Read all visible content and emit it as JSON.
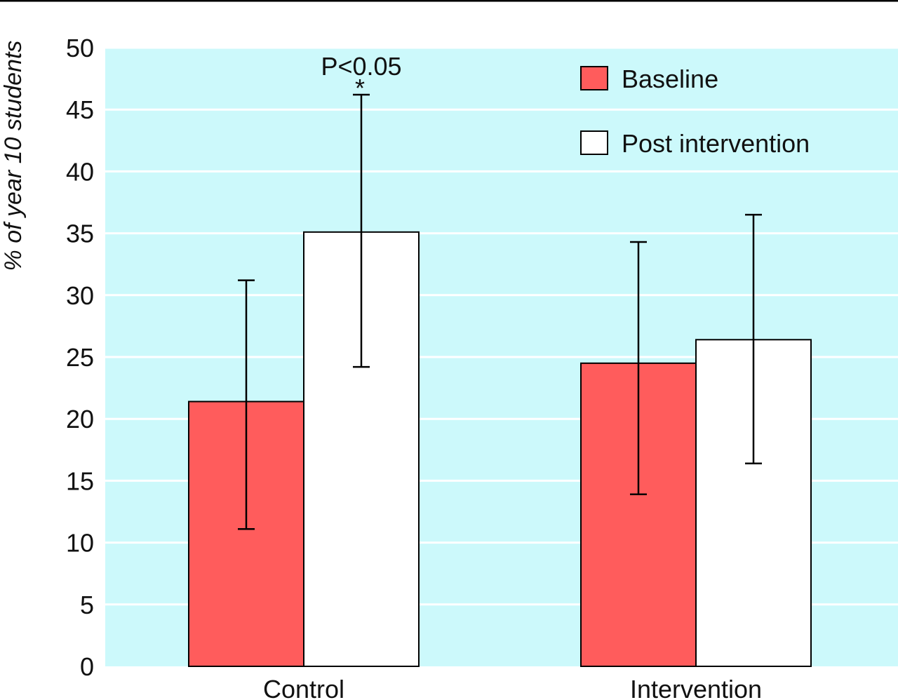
{
  "chart_data": {
    "type": "bar",
    "categories": [
      "Control",
      "Intervention"
    ],
    "series": [
      {
        "name": "Baseline",
        "color": "#ff5c5c",
        "values": [
          21.4,
          24.5
        ],
        "error_low": [
          11.1,
          13.9
        ],
        "error_high": [
          31.2,
          34.3
        ]
      },
      {
        "name": "Post intervention",
        "color": "#ffffff",
        "values": [
          35.1,
          26.4
        ],
        "error_low": [
          24.2,
          16.4
        ],
        "error_high": [
          46.2,
          36.5
        ]
      }
    ],
    "title": "",
    "xlabel": "",
    "ylabel": "% of year 10 students",
    "ylim": [
      0,
      50
    ],
    "yticks": [
      0,
      5,
      10,
      15,
      20,
      25,
      30,
      35,
      40,
      45,
      50
    ],
    "grid": true,
    "background_color": "#ccf9fb",
    "legend_position": "top-right",
    "annotations": [
      {
        "category": "Control",
        "series": "Post intervention",
        "text": "P<0.05",
        "marker": "*"
      }
    ]
  }
}
